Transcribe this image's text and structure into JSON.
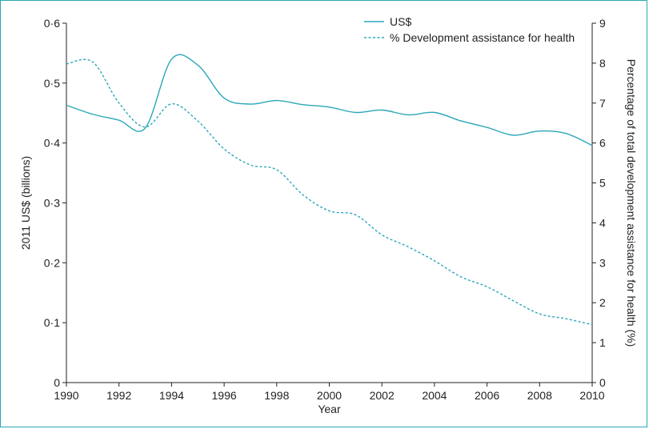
{
  "chart_data": {
    "type": "line",
    "x_min": 1990,
    "x_max": 2010,
    "xlabel": "Year",
    "ylabel_left": "2011 US$ (billions)",
    "ylabel_right": "Percentage of total development assistance for health (%)",
    "x_ticks": [
      "1990",
      "1992",
      "1994",
      "1996",
      "1998",
      "2000",
      "2002",
      "2004",
      "2006",
      "2008",
      "2010"
    ],
    "x_tick_values": [
      1990,
      1992,
      1994,
      1996,
      1998,
      2000,
      2002,
      2004,
      2006,
      2008,
      2010
    ],
    "y_left_range": [
      0,
      0.6
    ],
    "y_left_ticks": [
      "0",
      "0·1",
      "0·2",
      "0·3",
      "0·4",
      "0·5",
      "0·6"
    ],
    "y_left_tick_values": [
      0,
      0.1,
      0.2,
      0.3,
      0.4,
      0.5,
      0.6
    ],
    "y_right_range": [
      0,
      9
    ],
    "y_right_ticks": [
      "0",
      "1",
      "2",
      "3",
      "4",
      "5",
      "6",
      "7",
      "8",
      "9"
    ],
    "y_right_tick_values": [
      0,
      1,
      2,
      3,
      4,
      5,
      6,
      7,
      8,
      9
    ],
    "series": [
      {
        "name": "US$",
        "axis": "left",
        "style": "solid",
        "color": "#2aa7b8",
        "x": [
          1990,
          1991,
          1992,
          1993,
          1994,
          1995,
          1996,
          1997,
          1998,
          1999,
          2000,
          2001,
          2002,
          2003,
          2004,
          2005,
          2006,
          2007,
          2008,
          2009,
          2010
        ],
        "values": [
          0.463,
          0.448,
          0.438,
          0.425,
          0.54,
          0.53,
          0.475,
          0.465,
          0.471,
          0.464,
          0.46,
          0.451,
          0.455,
          0.447,
          0.451,
          0.437,
          0.426,
          0.413,
          0.42,
          0.416,
          0.396
        ]
      },
      {
        "name": "% Development assistance for health",
        "axis": "right",
        "style": "dashed",
        "color": "#2aa7b8",
        "x": [
          1990,
          1991,
          1992,
          1993,
          1994,
          1995,
          1996,
          1997,
          1998,
          1999,
          2000,
          2001,
          2002,
          2003,
          2004,
          2005,
          2006,
          2007,
          2008,
          2009,
          2010
        ],
        "values": [
          7.98,
          8.03,
          7.0,
          6.4,
          6.98,
          6.55,
          5.85,
          5.45,
          5.33,
          4.7,
          4.3,
          4.2,
          3.7,
          3.4,
          3.05,
          2.65,
          2.4,
          2.05,
          1.72,
          1.6,
          1.45
        ]
      }
    ],
    "legend_position": "top-right",
    "grid": false
  }
}
